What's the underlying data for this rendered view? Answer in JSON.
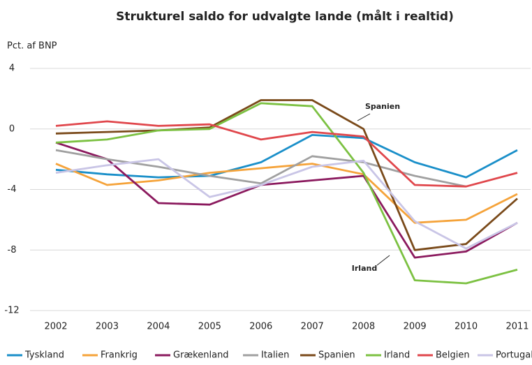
{
  "chart_data": {
    "type": "line",
    "title": "Strukturel saldo for udvalgte lande (målt i realtid)",
    "y_label": "Pct. af BNP",
    "categories": [
      "2002",
      "2003",
      "2004",
      "2005",
      "2006",
      "2007",
      "2008",
      "2009",
      "2010",
      "2011"
    ],
    "series": [
      {
        "name": "Tyskland",
        "color": "#1a8fc9",
        "values": [
          -2.7,
          -3.0,
          -3.2,
          -3.1,
          -2.2,
          -0.4,
          -0.6,
          -2.2,
          -3.2,
          -1.4
        ]
      },
      {
        "name": "Frankrig",
        "color": "#f5a33a",
        "values": [
          -2.3,
          -3.7,
          -3.4,
          -2.9,
          -2.6,
          -2.3,
          -3.0,
          -6.2,
          -6.0,
          -4.3
        ]
      },
      {
        "name": "Grækenland",
        "color": "#8b1a5e",
        "values": [
          -0.9,
          -2.0,
          -4.9,
          -5.0,
          -3.7,
          -3.4,
          -3.1,
          -8.5,
          -8.1,
          -6.2
        ]
      },
      {
        "name": "Italien",
        "color": "#a0a0a0",
        "values": [
          -1.4,
          -2.0,
          -2.5,
          -3.1,
          -3.6,
          -1.8,
          -2.2,
          -3.1,
          -3.8,
          null
        ]
      },
      {
        "name": "Spanien",
        "color": "#7a4a1a",
        "values": [
          -0.3,
          -0.2,
          -0.1,
          0.1,
          1.9,
          1.9,
          0.0,
          -8.0,
          -7.6,
          -4.6
        ]
      },
      {
        "name": "Irland",
        "color": "#7cc142",
        "values": [
          -0.9,
          -0.7,
          -0.1,
          0.0,
          1.7,
          1.5,
          -2.9,
          -10.0,
          -10.2,
          -9.3
        ]
      },
      {
        "name": "Belgien",
        "color": "#e0474c",
        "values": [
          0.2,
          0.5,
          0.2,
          0.3,
          -0.7,
          -0.2,
          -0.5,
          -3.7,
          -3.8,
          -2.9
        ]
      },
      {
        "name": "Portugal",
        "color": "#c9c5e6",
        "values": [
          -2.9,
          -2.4,
          -2.0,
          -4.5,
          -3.7,
          -2.5,
          -2.1,
          -6.1,
          -7.9,
          -6.2
        ]
      }
    ],
    "annotations": [
      "Spanien",
      "Irland"
    ],
    "ylim": [
      -12,
      4
    ],
    "yticks": [
      -12,
      -8,
      -4,
      0,
      4
    ],
    "grid": true
  }
}
